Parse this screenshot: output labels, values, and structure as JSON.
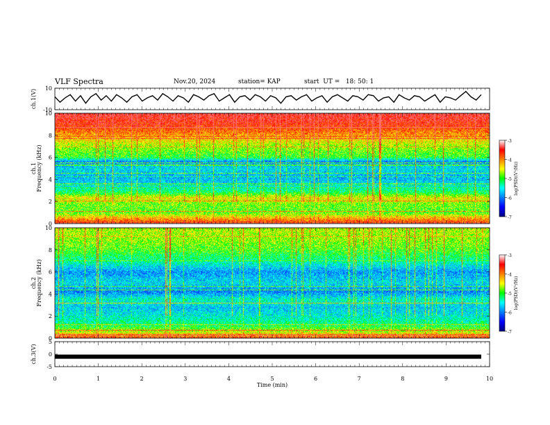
{
  "header": {
    "title": "VLF Spectra",
    "date": "Nov.20, 2024",
    "station": "station= KAP",
    "start": "start  UT =   18: 50: 1"
  },
  "chart_data": [
    {
      "type": "line",
      "name": "ch1-waveform",
      "ylabel": "ch.1(V)",
      "ylim": [
        -10,
        10
      ],
      "yticks": [
        "10",
        "-10"
      ],
      "xlim": [
        0,
        10
      ],
      "series": [
        {
          "color": "#000000",
          "values": [
            2,
            -3,
            1,
            4,
            -2,
            3,
            -4,
            2,
            5,
            -1,
            3,
            -2,
            4,
            1,
            -3,
            2,
            4,
            -2,
            1,
            3,
            -1,
            5,
            2,
            -2,
            3,
            1,
            -3,
            4,
            2,
            -1,
            3,
            5,
            -2,
            1,
            4,
            -3,
            2,
            3,
            -1,
            4,
            2,
            -2,
            3,
            1,
            -4,
            2,
            3,
            -1,
            2,
            4,
            -2,
            1,
            3,
            -3,
            2,
            4,
            1,
            -2,
            3,
            2,
            -1,
            4,
            3,
            -2,
            1,
            2,
            -3,
            4,
            1,
            -1,
            3,
            2,
            -2,
            1,
            4,
            -3,
            2,
            1,
            -1,
            3,
            7,
            2,
            -1,
            4
          ]
        }
      ]
    },
    {
      "type": "heatmap",
      "name": "ch1-spectrogram",
      "ylabel": "ch.1 Frequency (kHz)",
      "xlim": [
        0,
        10
      ],
      "ylim": [
        0,
        10
      ],
      "yticks": [
        "0",
        "2",
        "4",
        "6",
        "8",
        "10"
      ],
      "colorbar": {
        "label": "log(PSD)(V²/Hz)",
        "range": [
          -7,
          -3
        ],
        "ticks": [
          "-3",
          "-4",
          "-5",
          "-6",
          "-7"
        ]
      },
      "profile": [
        {
          "f": 0.0,
          "v": -3.6
        },
        {
          "f": 0.5,
          "v": -4.2
        },
        {
          "f": 1.0,
          "v": -4.9
        },
        {
          "f": 1.8,
          "v": -4.8
        },
        {
          "f": 2.3,
          "v": -4.4
        },
        {
          "f": 2.8,
          "v": -5.1
        },
        {
          "f": 3.5,
          "v": -5.6
        },
        {
          "f": 4.2,
          "v": -5.8
        },
        {
          "f": 5.0,
          "v": -5.6
        },
        {
          "f": 5.6,
          "v": -6.0
        },
        {
          "f": 6.0,
          "v": -5.0
        },
        {
          "f": 7.0,
          "v": -4.7
        },
        {
          "f": 8.0,
          "v": -4.1
        },
        {
          "f": 9.0,
          "v": -3.6
        },
        {
          "f": 10.0,
          "v": -3.3
        }
      ]
    },
    {
      "type": "heatmap",
      "name": "ch2-spectrogram",
      "ylabel": "ch.2 Frequency (kHz)",
      "xlim": [
        0,
        10
      ],
      "ylim": [
        0,
        10
      ],
      "yticks": [
        "0",
        "2",
        "4",
        "6",
        "8",
        "10"
      ],
      "colorbar": {
        "label": "log(PSD)(V²/Hz)",
        "range": [
          -7,
          -3
        ],
        "ticks": [
          "-3",
          "-4",
          "-5",
          "-6",
          "-7"
        ]
      },
      "profile": [
        {
          "f": 0.0,
          "v": -4.0
        },
        {
          "f": 0.6,
          "v": -4.6
        },
        {
          "f": 1.2,
          "v": -5.2
        },
        {
          "f": 2.0,
          "v": -5.5
        },
        {
          "f": 2.8,
          "v": -5.7
        },
        {
          "f": 3.5,
          "v": -5.4
        },
        {
          "f": 4.2,
          "v": -6.0
        },
        {
          "f": 5.0,
          "v": -5.6
        },
        {
          "f": 6.0,
          "v": -5.9
        },
        {
          "f": 7.0,
          "v": -5.3
        },
        {
          "f": 8.0,
          "v": -4.9
        },
        {
          "f": 9.0,
          "v": -4.7
        },
        {
          "f": 10.0,
          "v": -4.6
        }
      ]
    },
    {
      "type": "line",
      "name": "ch3-waveform",
      "ylabel": "ch.3(V)",
      "ylim": [
        -5,
        5
      ],
      "yticks": [
        "5",
        "0",
        "-5"
      ],
      "xlim": [
        0,
        10
      ],
      "series": [
        {
          "color": "#000000",
          "values": [
            -1,
            -1
          ]
        }
      ]
    }
  ],
  "xaxis": {
    "label": "Time  (min)",
    "ticks": [
      "0",
      "1",
      "2",
      "3",
      "4",
      "5",
      "6",
      "7",
      "8",
      "9",
      "10"
    ]
  }
}
